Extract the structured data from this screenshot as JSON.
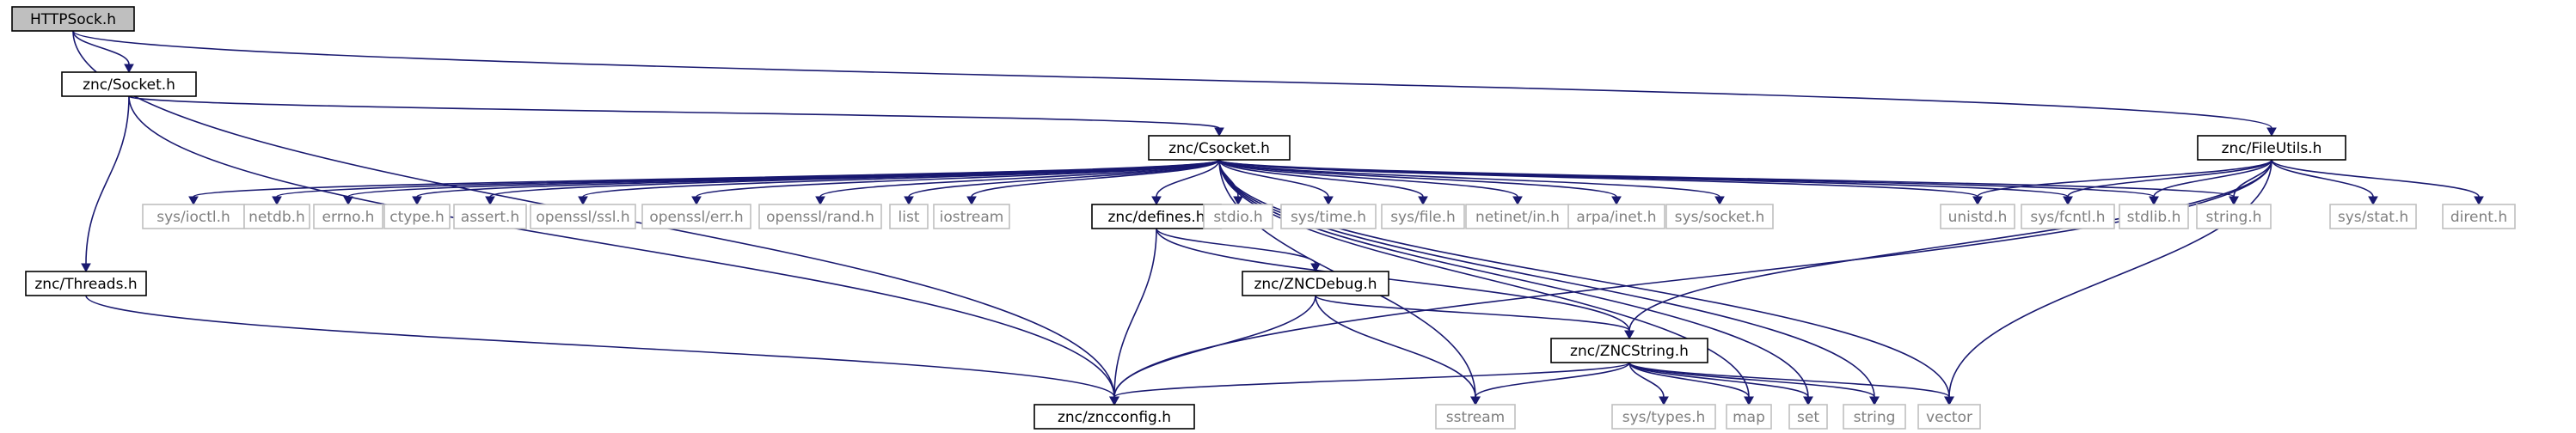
{
  "diagram": {
    "type": "include-dependency-graph",
    "nodes": [
      {
        "id": "httpsock",
        "label": "HTTPSock.h",
        "kind": "root"
      },
      {
        "id": "socket",
        "label": "znc/Socket.h",
        "kind": "local"
      },
      {
        "id": "fileutils",
        "label": "znc/FileUtils.h",
        "kind": "local"
      },
      {
        "id": "csocket",
        "label": "znc/Csocket.h",
        "kind": "local"
      },
      {
        "id": "threads",
        "label": "znc/Threads.h",
        "kind": "local"
      },
      {
        "id": "zncconfig",
        "label": "znc/zncconfig.h",
        "kind": "local"
      },
      {
        "id": "defines",
        "label": "znc/defines.h",
        "kind": "local"
      },
      {
        "id": "zncdebug",
        "label": "znc/ZNCDebug.h",
        "kind": "local"
      },
      {
        "id": "zncstring",
        "label": "znc/ZNCString.h",
        "kind": "local"
      },
      {
        "id": "sys_ioctl",
        "label": "sys/ioctl.h",
        "kind": "system"
      },
      {
        "id": "netdb",
        "label": "netdb.h",
        "kind": "system"
      },
      {
        "id": "errno",
        "label": "errno.h",
        "kind": "system"
      },
      {
        "id": "ctype",
        "label": "ctype.h",
        "kind": "system"
      },
      {
        "id": "assert",
        "label": "assert.h",
        "kind": "system"
      },
      {
        "id": "openssl_ssl",
        "label": "openssl/ssl.h",
        "kind": "system"
      },
      {
        "id": "openssl_err",
        "label": "openssl/err.h",
        "kind": "system"
      },
      {
        "id": "openssl_rand",
        "label": "openssl/rand.h",
        "kind": "system"
      },
      {
        "id": "list",
        "label": "list",
        "kind": "system"
      },
      {
        "id": "iostream",
        "label": "iostream",
        "kind": "system"
      },
      {
        "id": "stdio",
        "label": "stdio.h",
        "kind": "system"
      },
      {
        "id": "sys_time",
        "label": "sys/time.h",
        "kind": "system"
      },
      {
        "id": "sys_file",
        "label": "sys/file.h",
        "kind": "system"
      },
      {
        "id": "netinet_in",
        "label": "netinet/in.h",
        "kind": "system"
      },
      {
        "id": "arpa_inet",
        "label": "arpa/inet.h",
        "kind": "system"
      },
      {
        "id": "sys_socket",
        "label": "sys/socket.h",
        "kind": "system"
      },
      {
        "id": "unistd",
        "label": "unistd.h",
        "kind": "system"
      },
      {
        "id": "sys_fcntl",
        "label": "sys/fcntl.h",
        "kind": "system"
      },
      {
        "id": "stdlib",
        "label": "stdlib.h",
        "kind": "system"
      },
      {
        "id": "string_h",
        "label": "string.h",
        "kind": "system"
      },
      {
        "id": "sys_stat",
        "label": "sys/stat.h",
        "kind": "system"
      },
      {
        "id": "dirent",
        "label": "dirent.h",
        "kind": "system"
      },
      {
        "id": "sstream",
        "label": "sstream",
        "kind": "system"
      },
      {
        "id": "sys_types",
        "label": "sys/types.h",
        "kind": "system"
      },
      {
        "id": "map",
        "label": "map",
        "kind": "system"
      },
      {
        "id": "set",
        "label": "set",
        "kind": "system"
      },
      {
        "id": "string",
        "label": "string",
        "kind": "system"
      },
      {
        "id": "vector",
        "label": "vector",
        "kind": "system"
      }
    ],
    "edges": [
      [
        "httpsock",
        "socket"
      ],
      [
        "httpsock",
        "fileutils"
      ],
      [
        "httpsock",
        "zncconfig"
      ],
      [
        "socket",
        "csocket"
      ],
      [
        "socket",
        "threads"
      ],
      [
        "socket",
        "zncconfig"
      ],
      [
        "threads",
        "zncconfig"
      ],
      [
        "csocket",
        "sys_ioctl"
      ],
      [
        "csocket",
        "netdb"
      ],
      [
        "csocket",
        "errno"
      ],
      [
        "csocket",
        "ctype"
      ],
      [
        "csocket",
        "assert"
      ],
      [
        "csocket",
        "openssl_ssl"
      ],
      [
        "csocket",
        "openssl_err"
      ],
      [
        "csocket",
        "openssl_rand"
      ],
      [
        "csocket",
        "list"
      ],
      [
        "csocket",
        "iostream"
      ],
      [
        "csocket",
        "defines"
      ],
      [
        "csocket",
        "stdio"
      ],
      [
        "csocket",
        "sys_time"
      ],
      [
        "csocket",
        "sys_file"
      ],
      [
        "csocket",
        "netinet_in"
      ],
      [
        "csocket",
        "arpa_inet"
      ],
      [
        "csocket",
        "sys_socket"
      ],
      [
        "csocket",
        "unistd"
      ],
      [
        "csocket",
        "sys_fcntl"
      ],
      [
        "csocket",
        "stdlib"
      ],
      [
        "csocket",
        "string_h"
      ],
      [
        "csocket",
        "sstream"
      ],
      [
        "csocket",
        "map"
      ],
      [
        "csocket",
        "set"
      ],
      [
        "csocket",
        "string"
      ],
      [
        "csocket",
        "vector"
      ],
      [
        "defines",
        "zncconfig"
      ],
      [
        "defines",
        "zncdebug"
      ],
      [
        "defines",
        "zncstring"
      ],
      [
        "zncdebug",
        "zncconfig"
      ],
      [
        "zncdebug",
        "zncstring"
      ],
      [
        "zncdebug",
        "sstream"
      ],
      [
        "zncstring",
        "zncconfig"
      ],
      [
        "zncstring",
        "sstream"
      ],
      [
        "zncstring",
        "sys_types"
      ],
      [
        "zncstring",
        "map"
      ],
      [
        "zncstring",
        "set"
      ],
      [
        "zncstring",
        "string"
      ],
      [
        "zncstring",
        "vector"
      ],
      [
        "fileutils",
        "unistd"
      ],
      [
        "fileutils",
        "sys_fcntl"
      ],
      [
        "fileutils",
        "stdlib"
      ],
      [
        "fileutils",
        "string_h"
      ],
      [
        "fileutils",
        "sys_stat"
      ],
      [
        "fileutils",
        "dirent"
      ],
      [
        "fileutils",
        "zncstring"
      ],
      [
        "fileutils",
        "zncconfig"
      ],
      [
        "fileutils",
        "vector"
      ]
    ]
  }
}
